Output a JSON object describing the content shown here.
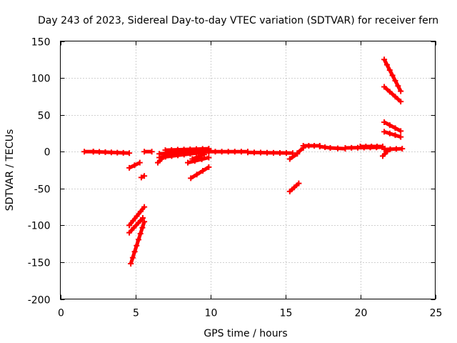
{
  "chart_data": {
    "type": "scatter",
    "title": "Day 243 of 2023, Sidereal Day-to-day VTEC variation (SDTVAR) for receiver fern",
    "xlabel": "GPS time / hours",
    "ylabel": "SDTVAR / TECUs",
    "xlim": [
      0,
      25
    ],
    "ylim": [
      -200,
      150
    ],
    "xticks": [
      0,
      5,
      10,
      15,
      20,
      25
    ],
    "yticks": [
      -200,
      -150,
      -100,
      -50,
      0,
      50,
      100,
      150
    ],
    "grid": true,
    "marker": "plus",
    "color": "#ff0000",
    "segments": [
      {
        "x": [
          1.6,
          2.2
        ],
        "y": [
          0,
          0
        ]
      },
      {
        "x": [
          2.2,
          4.6
        ],
        "y": [
          0,
          -2
        ]
      },
      {
        "x": [
          4.6,
          5.3
        ],
        "y": [
          -22,
          -15
        ]
      },
      {
        "x": [
          5.4,
          5.6
        ],
        "y": [
          -35,
          -33
        ]
      },
      {
        "x": [
          4.6,
          5.6
        ],
        "y": [
          -100,
          -75
        ]
      },
      {
        "x": [
          4.6,
          5.5
        ],
        "y": [
          -110,
          -90
        ]
      },
      {
        "x": [
          4.7,
          5.6
        ],
        "y": [
          -152,
          -95
        ]
      },
      {
        "x": [
          5.6,
          6.1
        ],
        "y": [
          0,
          0
        ]
      },
      {
        "x": [
          6.5,
          7.0
        ],
        "y": [
          -15,
          -5
        ]
      },
      {
        "x": [
          6.6,
          9.9
        ],
        "y": [
          -8,
          0
        ]
      },
      {
        "x": [
          6.6,
          9.9
        ],
        "y": [
          -3,
          3
        ]
      },
      {
        "x": [
          7.0,
          9.9
        ],
        "y": [
          2,
          4
        ]
      },
      {
        "x": [
          8.8,
          9.6
        ],
        "y": [
          -10,
          -4
        ]
      },
      {
        "x": [
          8.5,
          9.9
        ],
        "y": [
          -15,
          -8
        ]
      },
      {
        "x": [
          8.7,
          9.9
        ],
        "y": [
          -36,
          -21
        ]
      },
      {
        "x": [
          9.9,
          12.5
        ],
        "y": [
          0,
          0
        ]
      },
      {
        "x": [
          12.5,
          15.5
        ],
        "y": [
          -1,
          -2
        ]
      },
      {
        "x": [
          15.3,
          15.8
        ],
        "y": [
          -10,
          -3
        ]
      },
      {
        "x": [
          15.3,
          15.9
        ],
        "y": [
          -54,
          -43
        ]
      },
      {
        "x": [
          15.8,
          16.2
        ],
        "y": [
          -2,
          5
        ]
      },
      {
        "x": [
          16.2,
          17.3
        ],
        "y": [
          8,
          8
        ]
      },
      {
        "x": [
          17.3,
          18.0
        ],
        "y": [
          7,
          5
        ]
      },
      {
        "x": [
          18.0,
          19.0
        ],
        "y": [
          5,
          4
        ]
      },
      {
        "x": [
          19.0,
          21.5
        ],
        "y": [
          5,
          6
        ]
      },
      {
        "x": [
          20.0,
          21.5
        ],
        "y": [
          7,
          7
        ]
      },
      {
        "x": [
          21.5,
          21.8
        ],
        "y": [
          -6,
          0
        ]
      },
      {
        "x": [
          21.6,
          22.8
        ],
        "y": [
          3,
          4
        ]
      },
      {
        "x": [
          21.6,
          22.7
        ],
        "y": [
          125,
          82
        ]
      },
      {
        "x": [
          21.6,
          22.7
        ],
        "y": [
          88,
          68
        ]
      },
      {
        "x": [
          21.6,
          22.7
        ],
        "y": [
          40,
          28
        ]
      },
      {
        "x": [
          21.6,
          22.7
        ],
        "y": [
          27,
          20
        ]
      }
    ]
  }
}
